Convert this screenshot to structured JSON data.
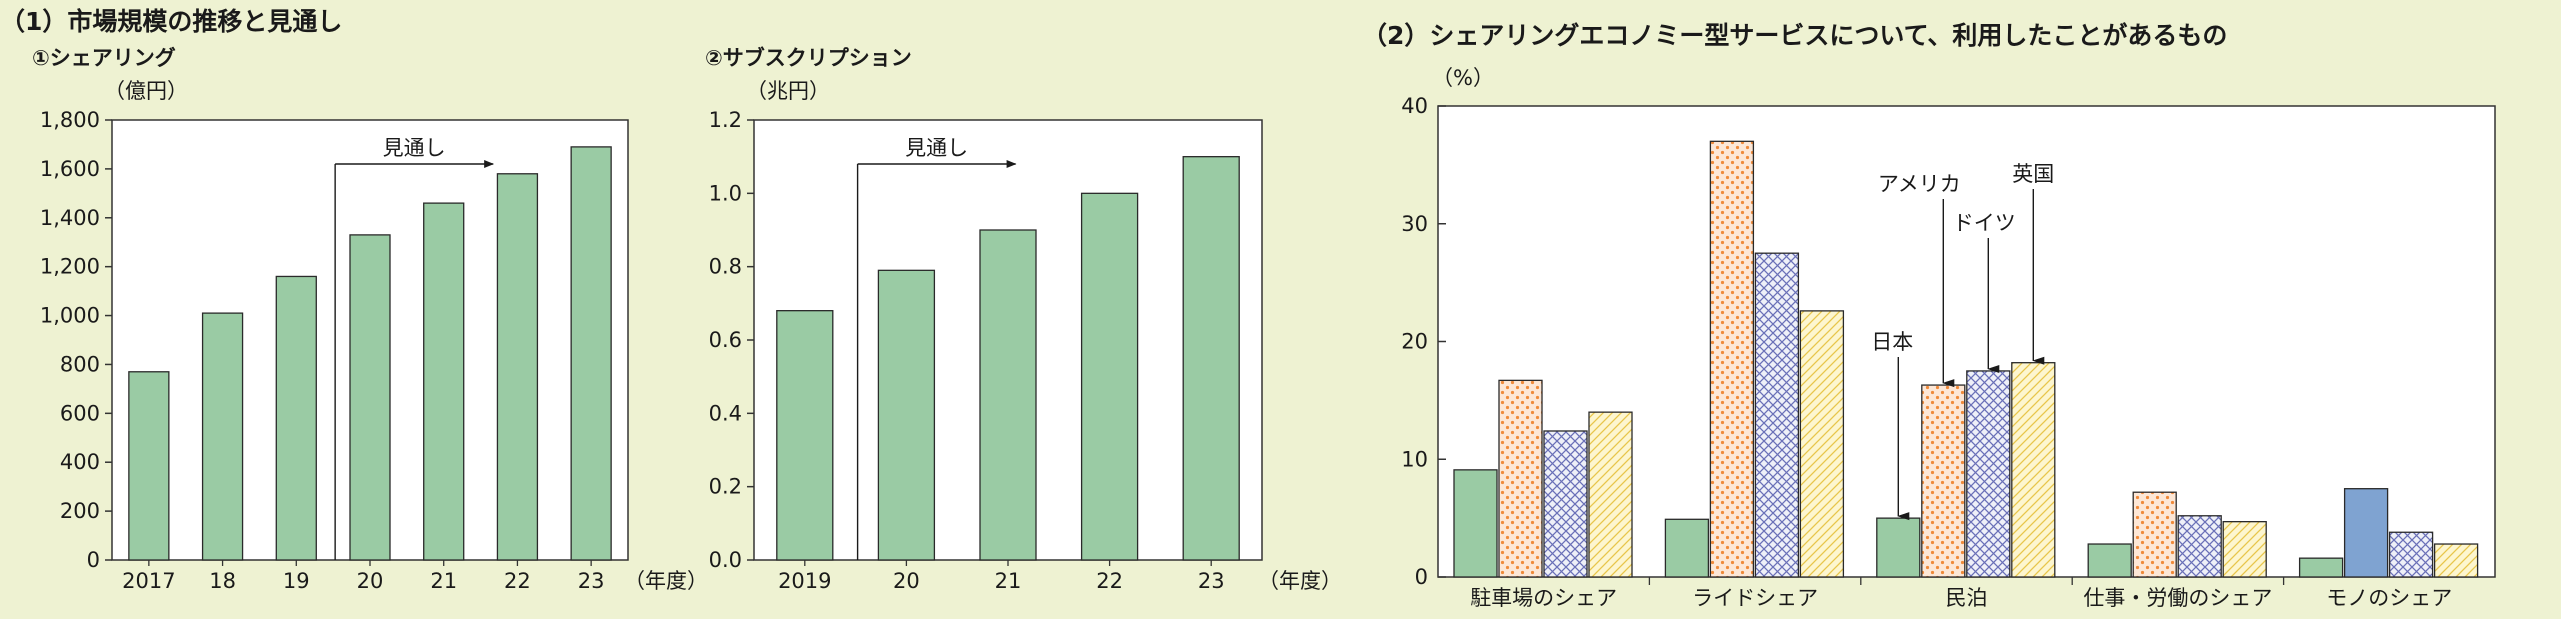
{
  "section1": {
    "title": "（1）市場規模の推移と見通し"
  },
  "section2": {
    "title": "（2）シェアリングエコノミー型サービスについて、利用したことがあるもの"
  },
  "colors": {
    "bar_green": "#9acba4",
    "us_fill": "#fde7d6",
    "us_dot": "#f08a3a",
    "de_fill": "#eef0f8",
    "de_line": "#6a70b8",
    "uk_fill": "#fdf6cf",
    "uk_line": "#e8c64a",
    "de_solid": "#7fa3d1"
  },
  "chart_data": [
    {
      "type": "bar",
      "subtitle": "①シェアリング",
      "unit": "（億円）",
      "categories": [
        "2017",
        "18",
        "19",
        "20",
        "21",
        "22",
        "23"
      ],
      "values": [
        770,
        1010,
        1160,
        1330,
        1460,
        1580,
        1690
      ],
      "ylim": [
        0,
        1800
      ],
      "yticks": [
        "0",
        "200",
        "400",
        "600",
        "800",
        "1,000",
        "1,200",
        "1,400",
        "1,600",
        "1,800"
      ],
      "xunit": "（年度）",
      "annotation": "見通し",
      "forecast_from": "20"
    },
    {
      "type": "bar",
      "subtitle": "②サブスクリプション",
      "unit": "（兆円）",
      "categories": [
        "2019",
        "20",
        "21",
        "22",
        "23"
      ],
      "values": [
        0.68,
        0.79,
        0.9,
        1.0,
        1.1
      ],
      "ylim": [
        0,
        1.2
      ],
      "yticks": [
        "0.0",
        "0.2",
        "0.4",
        "0.6",
        "0.8",
        "1.0",
        "1.2"
      ],
      "xunit": "（年度）",
      "annotation": "見通し",
      "forecast_from": "20"
    },
    {
      "type": "bar",
      "unit": "（%）",
      "categories": [
        "駐車場のシェア",
        "ライドシェア",
        "民泊",
        "仕事・労働のシェア",
        "モノのシェア"
      ],
      "ylim": [
        0,
        40
      ],
      "yticks": [
        "0",
        "10",
        "20",
        "30",
        "40"
      ],
      "series": [
        {
          "name": "日本",
          "values": [
            9.1,
            4.9,
            5.0,
            2.8,
            1.6
          ]
        },
        {
          "name": "アメリカ",
          "values": [
            16.7,
            37.0,
            16.3,
            7.2,
            7.5
          ]
        },
        {
          "name": "ドイツ",
          "values": [
            12.4,
            27.5,
            17.5,
            5.2,
            3.8
          ]
        },
        {
          "name": "英国",
          "values": [
            14.0,
            22.6,
            18.2,
            4.7,
            2.8
          ]
        }
      ]
    }
  ]
}
